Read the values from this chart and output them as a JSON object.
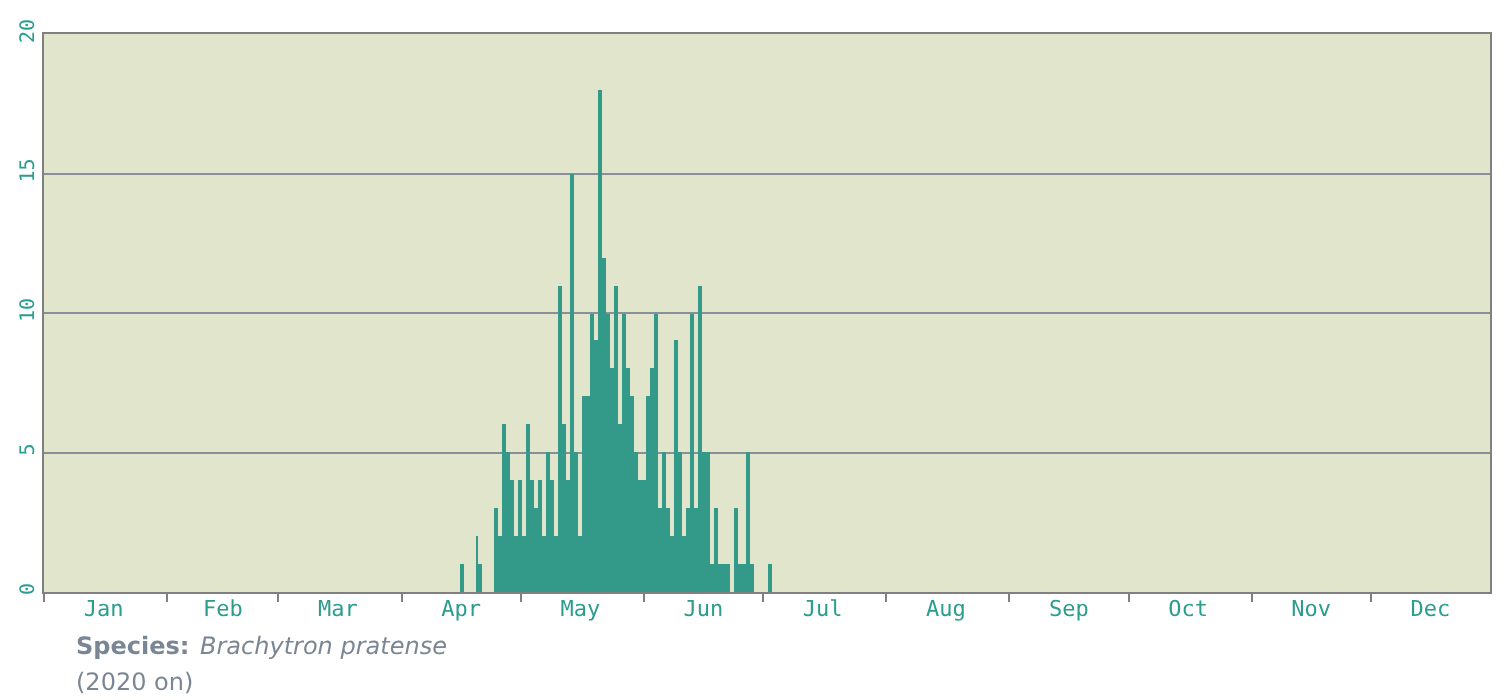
{
  "chart_data": {
    "type": "bar",
    "x": [
      "--04-16",
      "--04-20",
      "--04-21",
      "--04-25",
      "--04-26",
      "--04-27",
      "--04-28",
      "--04-29",
      "--04-30",
      "--05-01",
      "--05-02",
      "--05-03",
      "--05-04",
      "--05-05",
      "--05-06",
      "--05-07",
      "--05-08",
      "--05-09",
      "--05-10",
      "--05-11",
      "--05-12",
      "--05-13",
      "--05-14",
      "--05-15",
      "--05-16",
      "--05-17",
      "--05-18",
      "--05-19",
      "--05-20",
      "--05-21",
      "--05-22",
      "--05-23",
      "--05-24",
      "--05-25",
      "--05-26",
      "--05-27",
      "--05-28",
      "--05-29",
      "--05-30",
      "--05-31",
      "--06-01",
      "--06-02",
      "--06-03",
      "--06-04",
      "--06-05",
      "--06-06",
      "--06-07",
      "--06-08",
      "--06-09",
      "--06-10",
      "--06-11",
      "--06-12",
      "--06-13",
      "--06-14",
      "--06-15",
      "--06-16",
      "--06-17",
      "--06-18",
      "--06-19",
      "--06-20",
      "--06-21",
      "--06-22",
      "--06-24",
      "--06-25",
      "--06-26",
      "--06-27",
      "--06-28",
      "--07-03"
    ],
    "values": [
      1,
      2,
      1,
      3,
      2,
      6,
      5,
      4,
      2,
      4,
      2,
      6,
      4,
      3,
      4,
      2,
      5,
      4,
      2,
      11,
      6,
      4,
      15,
      5,
      2,
      7,
      7,
      10,
      9,
      18,
      12,
      10,
      8,
      11,
      6,
      10,
      8,
      7,
      5,
      4,
      4,
      7,
      8,
      10,
      3,
      5,
      3,
      2,
      9,
      5,
      2,
      3,
      10,
      3,
      11,
      5,
      5,
      1,
      3,
      1,
      1,
      1,
      3,
      1,
      1,
      5,
      1,
      1
    ],
    "color": "#339988",
    "xlim": [
      "--01-01",
      "--12-31"
    ],
    "xticks": [
      {
        "value": "--01-01",
        "label": null
      },
      {
        "value": "--01-16",
        "label": "Jan"
      },
      {
        "value": "--02-01",
        "label": null
      },
      {
        "value": "--02-15",
        "label": "Feb"
      },
      {
        "value": "--03-01",
        "label": null
      },
      {
        "value": "--03-16",
        "label": "Mar"
      },
      {
        "value": "--04-01",
        "label": null
      },
      {
        "value": "--04-16",
        "label": "Apr"
      },
      {
        "value": "--05-01",
        "label": null
      },
      {
        "value": "--05-16",
        "label": "May"
      },
      {
        "value": "--06-01",
        "label": null
      },
      {
        "value": "--06-16",
        "label": "Jun"
      },
      {
        "value": "--07-01",
        "label": null
      },
      {
        "value": "--07-16",
        "label": "Jul"
      },
      {
        "value": "--08-01",
        "label": null
      },
      {
        "value": "--08-16",
        "label": "Aug"
      },
      {
        "value": "--09-01",
        "label": null
      },
      {
        "value": "--09-16",
        "label": "Sep"
      },
      {
        "value": "--10-01",
        "label": null
      },
      {
        "value": "--10-16",
        "label": "Oct"
      },
      {
        "value": "--11-01",
        "label": null
      },
      {
        "value": "--11-16",
        "label": "Nov"
      },
      {
        "value": "--12-01",
        "label": null
      },
      {
        "value": "--12-16",
        "label": "Dec"
      }
    ],
    "ylim": [
      0,
      20
    ],
    "yticks": [
      0,
      5,
      10,
      15,
      20
    ],
    "grid": "y",
    "annotations": [
      "Species:",
      "Brachytron pratense",
      "(2020 on)"
    ]
  }
}
